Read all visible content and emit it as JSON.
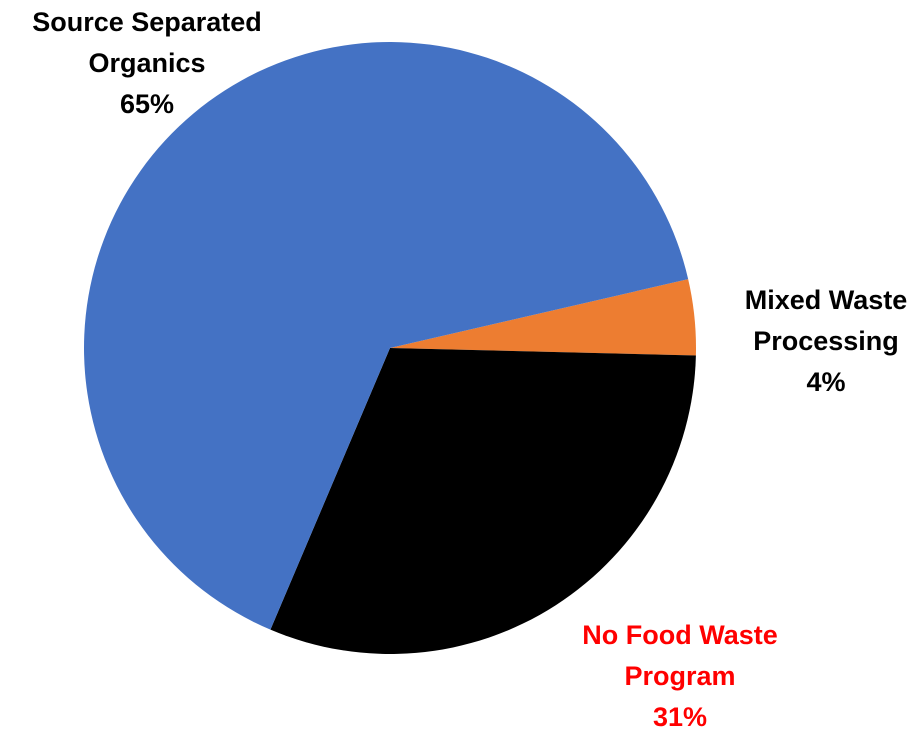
{
  "chart_data": {
    "type": "pie",
    "start_angle_deg": -13,
    "direction": "clockwise",
    "slices": [
      {
        "name_lines": [
          "Mixed Waste",
          "Processing"
        ],
        "value": 4,
        "percent_label": "4%",
        "color": "#ED7D31",
        "label_color": "#000000"
      },
      {
        "name_lines": [
          "No Food Waste",
          "Program"
        ],
        "value": 31,
        "percent_label": "31%",
        "color": "#000000",
        "label_color": "#FF0000"
      },
      {
        "name_lines": [
          "Source Separated",
          "Organics"
        ],
        "value": 65,
        "percent_label": "65%",
        "color": "#4472C4",
        "label_color": "#000000"
      }
    ]
  }
}
